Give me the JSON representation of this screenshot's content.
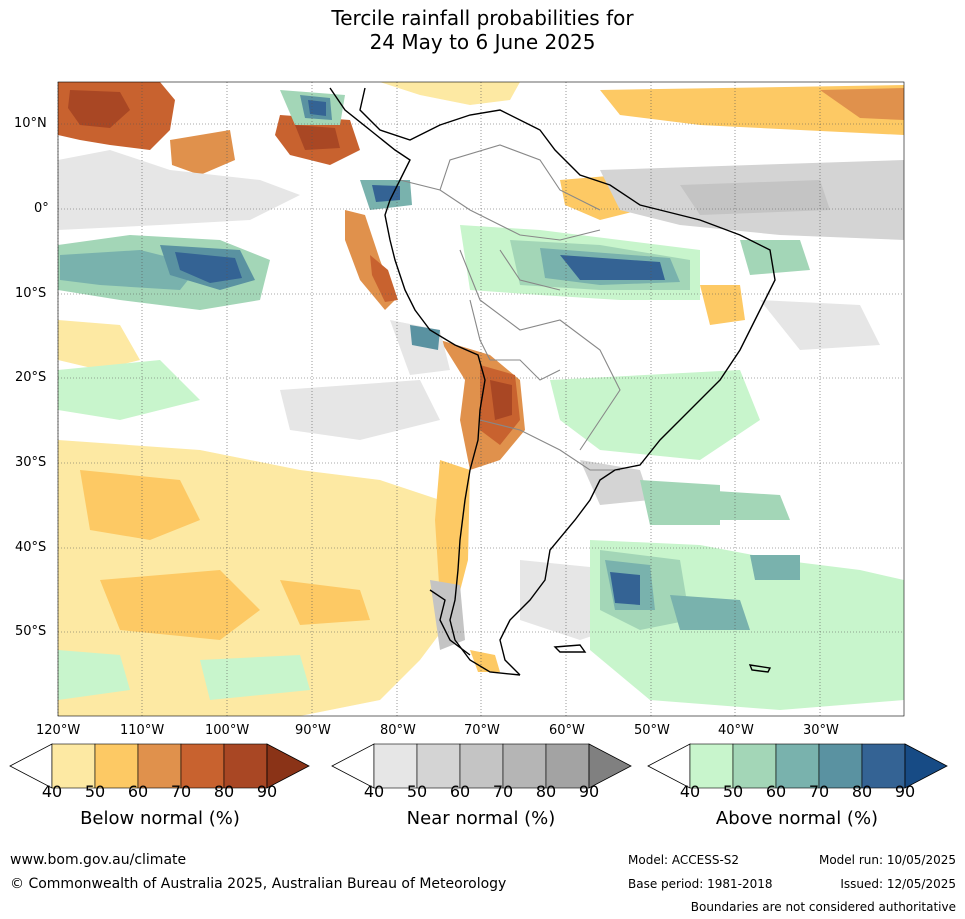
{
  "title": {
    "line1": "Tercile rainfall probabilities for",
    "line2": "24 May to 6 June 2025"
  },
  "axes": {
    "lat_labels": [
      "10°N",
      "0°",
      "10°S",
      "20°S",
      "30°S",
      "40°S",
      "50°S"
    ],
    "lon_labels": [
      "120°W",
      "110°W",
      "100°W",
      "90°W",
      "80°W",
      "70°W",
      "60°W",
      "50°W",
      "40°W",
      "30°W"
    ]
  },
  "colorbars": [
    {
      "title": "Below normal (%)",
      "ticks": [
        "40",
        "50",
        "60",
        "70",
        "80",
        "90"
      ],
      "colors": [
        "#ffffff",
        "#fde9a3",
        "#fdc964",
        "#e0914c",
        "#c8622f",
        "#a94724",
        "#8a3317"
      ]
    },
    {
      "title": "Near normal (%)",
      "ticks": [
        "40",
        "50",
        "60",
        "70",
        "80",
        "90"
      ],
      "colors": [
        "#ffffff",
        "#e6e6e6",
        "#d4d4d4",
        "#c4c4c4",
        "#b5b5b5",
        "#a3a3a3",
        "#808080"
      ]
    },
    {
      "title": "Above normal (%)",
      "ticks": [
        "40",
        "50",
        "60",
        "70",
        "80",
        "90"
      ],
      "colors": [
        "#ffffff",
        "#c8f5cc",
        "#a3d6b7",
        "#79b2ad",
        "#5a92a1",
        "#346394",
        "#174b85"
      ]
    }
  ],
  "footer": {
    "url": "www.bom.gov.au/climate",
    "copyright": "© Commonwealth of Australia 2025, Australian Bureau of Meteorology",
    "model": "Model: ACCESS-S2",
    "base_period": "Base period: 1981-2018",
    "model_run": "Model run: 10/05/2025",
    "issued": "Issued: 12/05/2025",
    "disclaimer": "Boundaries are not considered authoritative"
  }
}
